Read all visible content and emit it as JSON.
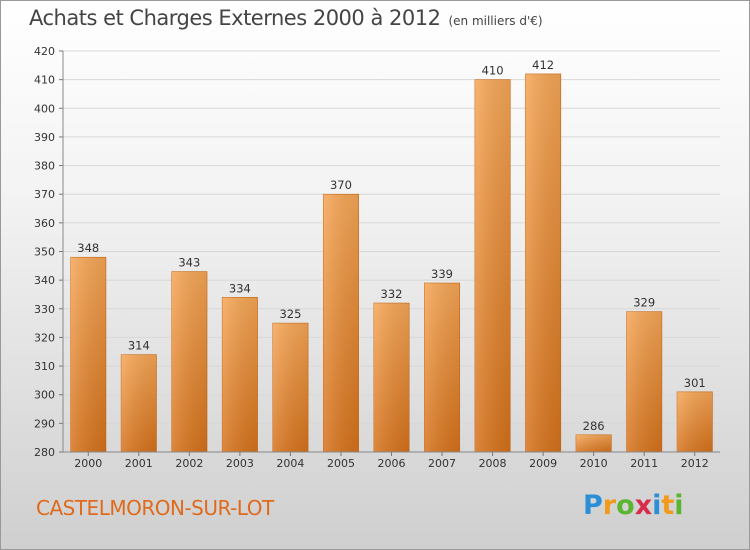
{
  "chart_data": {
    "type": "bar",
    "title": "Achats et Charges Externes 2000 à 2012",
    "unit": "(en milliers d'€)",
    "categories": [
      "2000",
      "2001",
      "2002",
      "2003",
      "2004",
      "2005",
      "2006",
      "2007",
      "2008",
      "2009",
      "2010",
      "2011",
      "2012"
    ],
    "values": [
      348,
      314,
      343,
      334,
      325,
      370,
      332,
      339,
      410,
      412,
      286,
      329,
      301
    ],
    "ylim": [
      280,
      420
    ],
    "yticks": [
      280,
      290,
      300,
      310,
      320,
      330,
      340,
      350,
      360,
      370,
      380,
      390,
      400,
      410,
      420
    ],
    "grid": true,
    "bar_color": "#f0922f",
    "bar_color_dark": "#d8751c"
  },
  "footer": {
    "place": "CASTELMORON-SUR-LOT",
    "logo": "Proxiti"
  }
}
